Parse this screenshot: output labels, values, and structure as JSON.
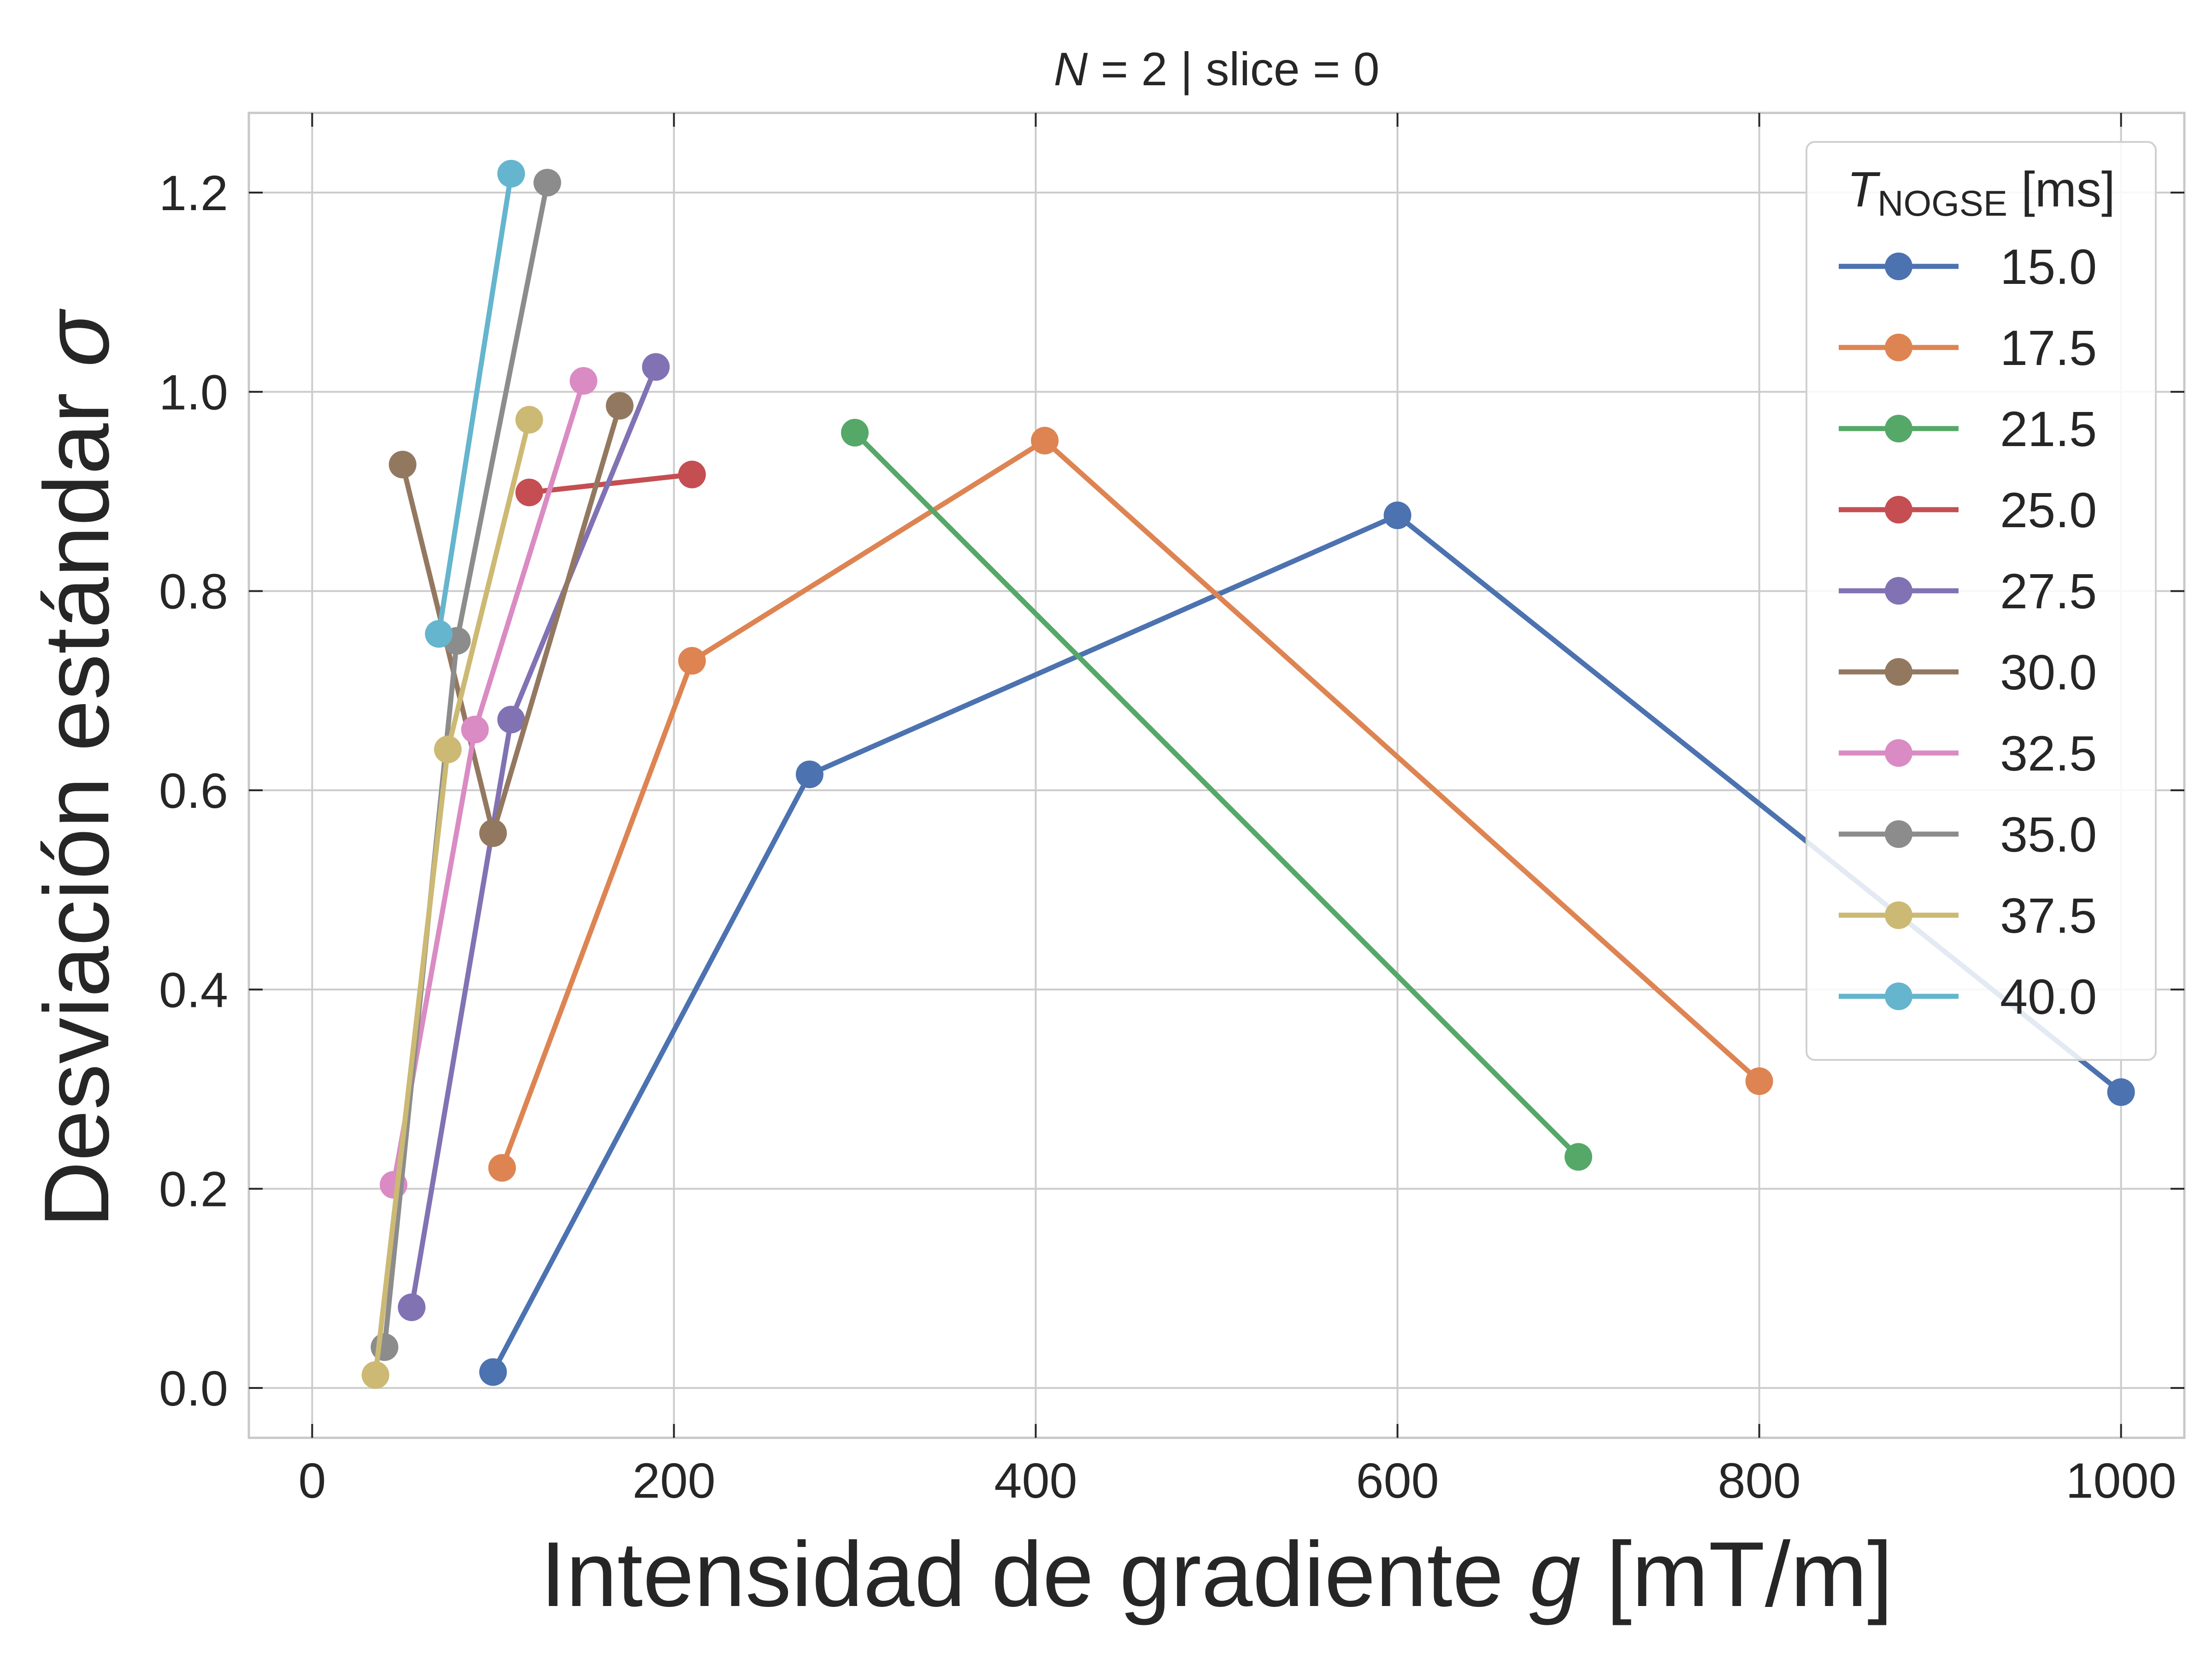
{
  "chart_data": {
    "type": "line",
    "title": {
      "var": "N",
      "rest": " = 2 | slice = 0"
    },
    "xlabel": {
      "text": "Intensidad de gradiente ",
      "var": "g",
      "unit": " [mT/m]"
    },
    "ylabel": {
      "text": "Desviación estándar ",
      "var": "σ"
    },
    "xlim": [
      -35,
      1035
    ],
    "ylim": [
      -0.05,
      1.28
    ],
    "xticks": [
      0,
      200,
      400,
      600,
      800,
      1000
    ],
    "yticks": [
      0.0,
      0.2,
      0.4,
      0.6,
      0.8,
      1.0,
      1.2
    ],
    "xtick_labels": [
      "0",
      "200",
      "400",
      "600",
      "800",
      "1000"
    ],
    "ytick_labels": [
      "0.0",
      "0.2",
      "0.4",
      "0.6",
      "0.8",
      "1.0",
      "1.2"
    ],
    "grid": true,
    "legend": {
      "placement": "top-right",
      "title": {
        "var": "T",
        "sub": "NOGSE",
        "unit": " [ms]"
      }
    },
    "series": [
      {
        "name": "15.0",
        "color": "#4c72b0",
        "x": [
          100,
          275,
          600,
          1000
        ],
        "y": [
          0.016,
          0.616,
          0.876,
          0.297
        ]
      },
      {
        "name": "17.5",
        "color": "#dd8452",
        "x": [
          105,
          210,
          405,
          800
        ],
        "y": [
          0.221,
          0.73,
          0.951,
          0.308
        ]
      },
      {
        "name": "21.5",
        "color": "#55a868",
        "x": [
          300,
          700
        ],
        "y": [
          0.959,
          0.232
        ]
      },
      {
        "name": "25.0",
        "color": "#c44e52",
        "x": [
          120,
          210
        ],
        "y": [
          0.899,
          0.917
        ]
      },
      {
        "name": "27.5",
        "color": "#8172b3",
        "x": [
          55,
          110,
          190
        ],
        "y": [
          0.081,
          0.671,
          1.025
        ]
      },
      {
        "name": "30.0",
        "color": "#937860",
        "x": [
          50,
          100,
          170
        ],
        "y": [
          0.927,
          0.557,
          0.986
        ]
      },
      {
        "name": "32.5",
        "color": "#da8bc3",
        "x": [
          45,
          90,
          150
        ],
        "y": [
          0.204,
          0.661,
          1.011
        ]
      },
      {
        "name": "35.0",
        "color": "#8c8c8c",
        "x": [
          40,
          80,
          130
        ],
        "y": [
          0.041,
          0.75,
          1.21
        ]
      },
      {
        "name": "37.5",
        "color": "#ccb974",
        "x": [
          35,
          75,
          120
        ],
        "y": [
          0.013,
          0.641,
          0.972
        ]
      },
      {
        "name": "40.0",
        "color": "#64b5cd",
        "x": [
          70,
          110
        ],
        "y": [
          0.757,
          1.219
        ]
      }
    ]
  }
}
